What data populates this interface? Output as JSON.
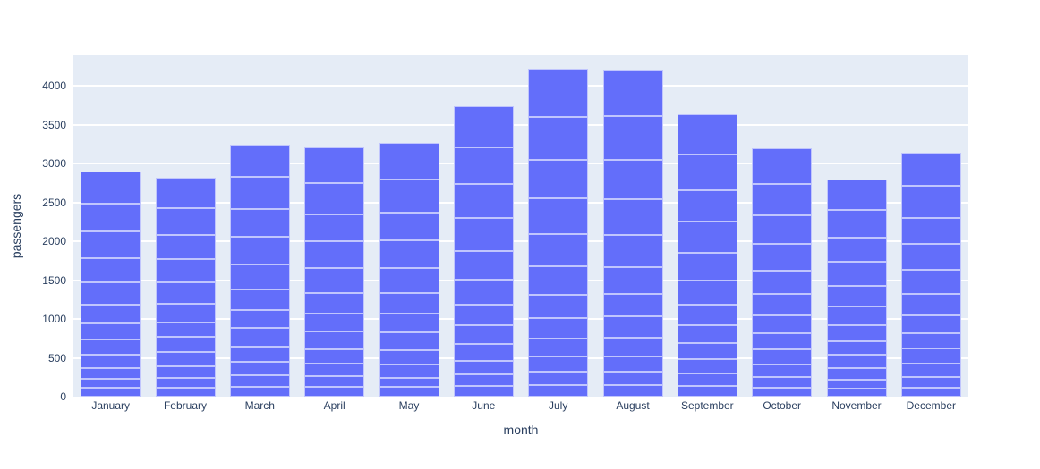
{
  "chart_data": {
    "type": "bar",
    "stacked": true,
    "title": "",
    "xlabel": "month",
    "ylabel": "passengers",
    "categories": [
      "January",
      "February",
      "March",
      "April",
      "May",
      "June",
      "July",
      "August",
      "September",
      "October",
      "November",
      "December"
    ],
    "bars": [
      {
        "month": "January",
        "total": 2901,
        "segments": [
          112,
          115,
          145,
          171,
          196,
          204,
          242,
          284,
          315,
          340,
          360,
          417
        ]
      },
      {
        "month": "February",
        "total": 2820,
        "segments": [
          118,
          126,
          150,
          180,
          196,
          188,
          233,
          277,
          301,
          318,
          342,
          391
        ]
      },
      {
        "month": "March",
        "total": 3242,
        "segments": [
          132,
          141,
          178,
          193,
          236,
          235,
          267,
          317,
          356,
          362,
          406,
          419
        ]
      },
      {
        "month": "April",
        "total": 3205,
        "segments": [
          129,
          135,
          163,
          181,
          235,
          227,
          269,
          313,
          348,
          348,
          396,
          461
        ]
      },
      {
        "month": "May",
        "total": 3262,
        "segments": [
          121,
          125,
          172,
          183,
          229,
          234,
          270,
          318,
          355,
          363,
          420,
          472
        ]
      },
      {
        "month": "June",
        "total": 3740,
        "segments": [
          135,
          149,
          178,
          218,
          243,
          264,
          315,
          374,
          422,
          435,
          472,
          535
        ]
      },
      {
        "month": "July",
        "total": 4216,
        "segments": [
          148,
          170,
          199,
          230,
          264,
          302,
          364,
          413,
          465,
          491,
          548,
          622
        ]
      },
      {
        "month": "August",
        "total": 4213,
        "segments": [
          148,
          170,
          199,
          242,
          272,
          293,
          347,
          405,
          467,
          505,
          559,
          606
        ]
      },
      {
        "month": "September",
        "total": 3629,
        "segments": [
          136,
          158,
          184,
          209,
          237,
          259,
          312,
          355,
          404,
          404,
          463,
          508
        ]
      },
      {
        "month": "October",
        "total": 3199,
        "segments": [
          119,
          133,
          162,
          191,
          211,
          229,
          274,
          306,
          347,
          359,
          407,
          461
        ]
      },
      {
        "month": "November",
        "total": 2794,
        "segments": [
          104,
          114,
          146,
          172,
          180,
          203,
          237,
          271,
          305,
          310,
          362,
          390
        ]
      },
      {
        "month": "December",
        "total": 3142,
        "segments": [
          118,
          140,
          166,
          194,
          201,
          229,
          278,
          306,
          336,
          337,
          405,
          432
        ]
      }
    ],
    "yticks": [
      0,
      500,
      1000,
      1500,
      2000,
      2500,
      3000,
      3500,
      4000
    ],
    "ylim": [
      0,
      4391
    ],
    "grid": true,
    "legend": "none",
    "colors": {
      "bar_fill": "#636efa",
      "segment_border": "rgba(255,255,255,0.6)",
      "plot_bg": "#e5ecf6",
      "gridline": "#ffffff",
      "text": "#2a3f5f",
      "page_bg": "#ffffff"
    }
  }
}
